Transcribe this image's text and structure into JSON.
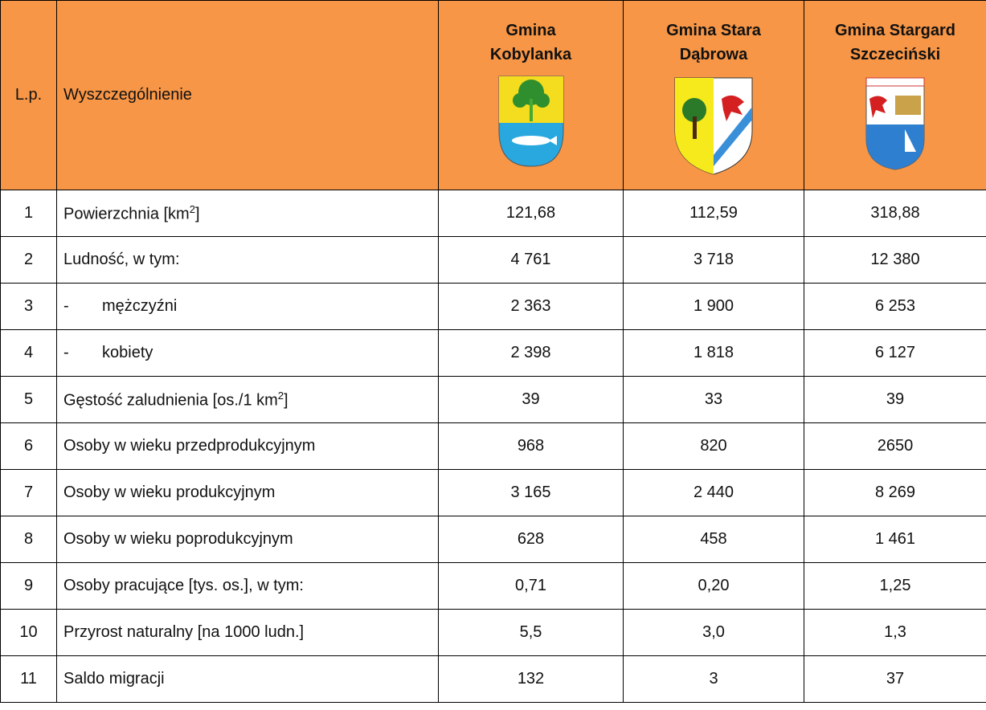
{
  "header": {
    "lp": "L.p.",
    "name": "Wyszczególnienie",
    "columns": [
      [
        "Gmina",
        "Kobylanka"
      ],
      [
        "Gmina Stara",
        "Dąbrowa"
      ],
      [
        "Gmina Stargard",
        "Szczeciński"
      ]
    ]
  },
  "rows": [
    {
      "lp": "1",
      "name": "Powierzchnia [km",
      "sup": "2",
      "tail": "]",
      "values": [
        "121,68",
        "112,59",
        "318,88"
      ]
    },
    {
      "lp": "2",
      "name": "Ludność, w tym:",
      "values": [
        "4 761",
        "3 718",
        "12 380"
      ]
    },
    {
      "lp": "3",
      "dash": "-",
      "name": "mężczyźni",
      "values": [
        "2 363",
        "1 900",
        "6 253"
      ]
    },
    {
      "lp": "4",
      "dash": "-",
      "name": "kobiety",
      "values": [
        "2 398",
        "1 818",
        "6 127"
      ]
    },
    {
      "lp": "5",
      "name": "Gęstość zaludnienia [os./1 km",
      "sup": "2",
      "tail": "]",
      "values": [
        "39",
        "33",
        "39"
      ]
    },
    {
      "lp": "6",
      "name": "Osoby w wieku przedprodukcyjnym",
      "values": [
        "968",
        "820",
        "2650"
      ]
    },
    {
      "lp": "7",
      "name": "Osoby w wieku produkcyjnym",
      "values": [
        "3 165",
        "2 440",
        "8 269"
      ]
    },
    {
      "lp": "8",
      "name": "Osoby w wieku poprodukcyjnym",
      "values": [
        "628",
        "458",
        "1 461"
      ]
    },
    {
      "lp": "9",
      "name": "Osoby pracujące [tys. os.], w tym:",
      "values": [
        "0,71",
        "0,20",
        "1,25"
      ]
    },
    {
      "lp": "10",
      "name": "Przyrost naturalny [na 1000 ludn.]",
      "values": [
        "5,5",
        "3,0",
        "1,3"
      ]
    },
    {
      "lp": "11",
      "name": "Saldo migracji",
      "values": [
        "132",
        "3",
        "37"
      ]
    }
  ]
}
